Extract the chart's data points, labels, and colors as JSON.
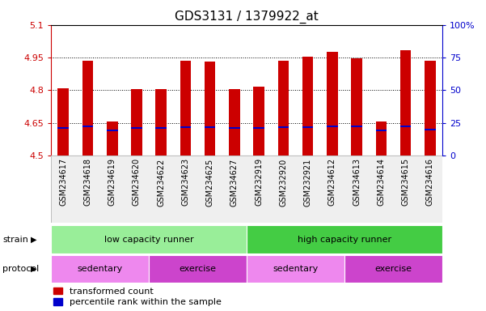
{
  "title": "GDS3131 / 1379922_at",
  "samples": [
    "GSM234617",
    "GSM234618",
    "GSM234619",
    "GSM234620",
    "GSM234622",
    "GSM234623",
    "GSM234625",
    "GSM234627",
    "GSM232919",
    "GSM232920",
    "GSM232921",
    "GSM234612",
    "GSM234613",
    "GSM234614",
    "GSM234615",
    "GSM234616"
  ],
  "red_values": [
    4.81,
    4.935,
    4.655,
    4.805,
    4.805,
    4.935,
    4.93,
    4.805,
    4.815,
    4.935,
    4.955,
    4.975,
    4.945,
    4.655,
    4.985,
    4.935
  ],
  "blue_values": [
    4.625,
    4.635,
    4.615,
    4.625,
    4.625,
    4.63,
    4.63,
    4.625,
    4.625,
    4.63,
    4.63,
    4.635,
    4.635,
    4.615,
    4.635,
    4.62
  ],
  "ymin": 4.5,
  "ymax": 5.1,
  "yticks": [
    4.5,
    4.65,
    4.8,
    4.95,
    5.1
  ],
  "ytick_labels": [
    "4.5",
    "4.65",
    "4.8",
    "4.95",
    "5.1"
  ],
  "right_yticks": [
    0,
    25,
    50,
    75,
    100
  ],
  "right_ytick_labels": [
    "0",
    "25",
    "50",
    "75",
    "100%"
  ],
  "bar_color": "#cc0000",
  "blue_color": "#0000cc",
  "bar_width": 0.45,
  "strain_groups": [
    {
      "label": "low capacity runner",
      "start": 0,
      "end": 8,
      "color": "#99ee99"
    },
    {
      "label": "high capacity runner",
      "start": 8,
      "end": 16,
      "color": "#44cc44"
    }
  ],
  "protocol_groups": [
    {
      "label": "sedentary",
      "start": 0,
      "end": 4,
      "color": "#ee88ee"
    },
    {
      "label": "exercise",
      "start": 4,
      "end": 8,
      "color": "#cc44cc"
    },
    {
      "label": "sedentary",
      "start": 8,
      "end": 12,
      "color": "#ee88ee"
    },
    {
      "label": "exercise",
      "start": 12,
      "end": 16,
      "color": "#cc44cc"
    }
  ],
  "legend_red_label": "transformed count",
  "legend_blue_label": "percentile rank within the sample",
  "ylabel_left_color": "#cc0000",
  "ylabel_right_color": "#0000cc",
  "grid_color": "#000000",
  "background_color": "#ffffff",
  "title_fontsize": 11,
  "tick_fontsize": 8,
  "label_fontsize": 8,
  "sample_fontsize": 7,
  "annotation_fontsize": 8
}
